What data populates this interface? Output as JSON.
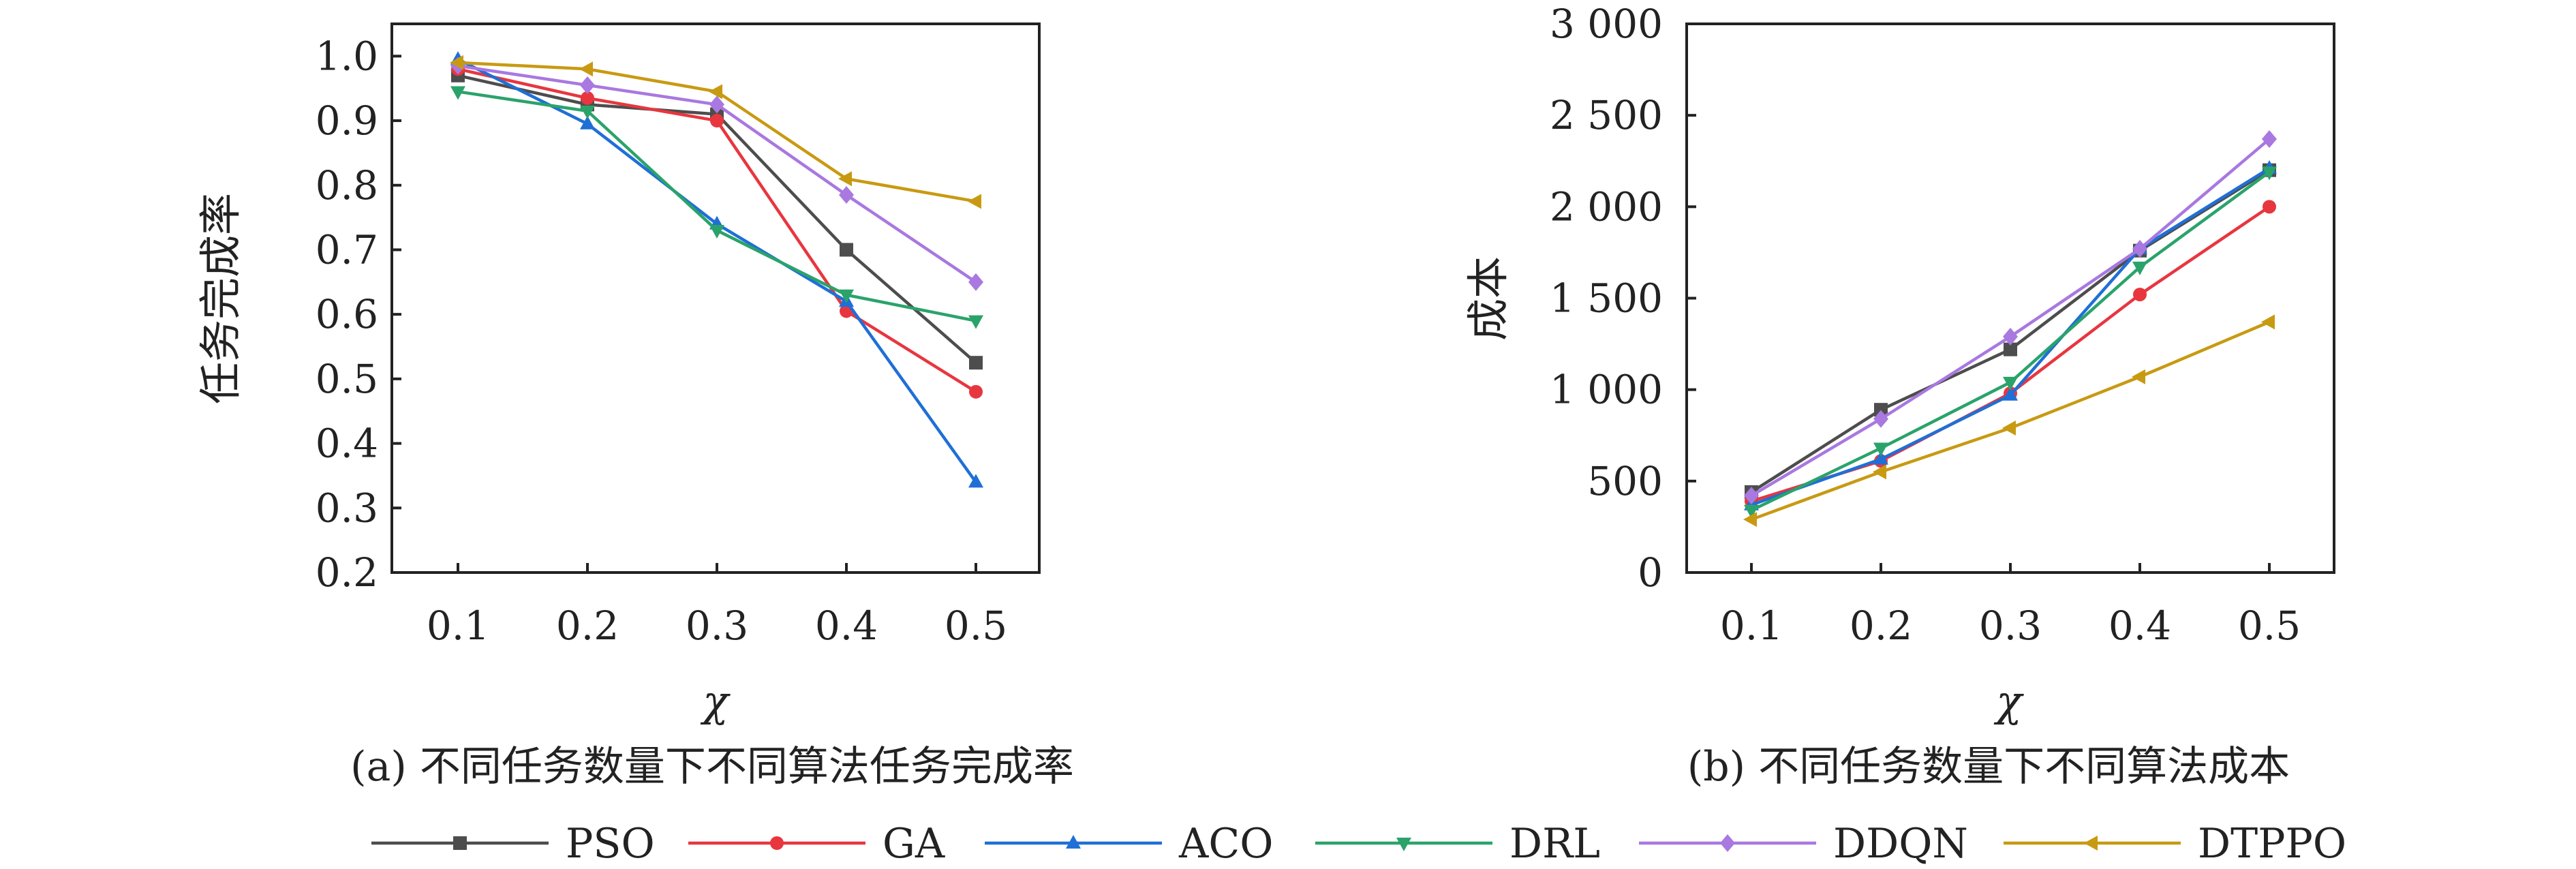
{
  "chart_data": [
    {
      "type": "line",
      "ylabel": "任务完成率",
      "xlabel": "χ",
      "caption": "(a) 不同任务数量下不同算法任务完成率",
      "x": [
        "0.1",
        "0.2",
        "0.3",
        "0.4",
        "0.5"
      ],
      "ylim": [
        0.2,
        1.05
      ],
      "yticks": [
        "0.2",
        "0.3",
        "0.4",
        "0.5",
        "0.6",
        "0.7",
        "0.8",
        "0.9",
        "1.0"
      ],
      "series": [
        {
          "name": "PSO",
          "values": [
            0.97,
            0.925,
            0.91,
            0.7,
            0.525
          ]
        },
        {
          "name": "GA",
          "values": [
            0.98,
            0.935,
            0.9,
            0.605,
            0.48
          ]
        },
        {
          "name": "ACO",
          "values": [
            0.995,
            0.895,
            0.74,
            0.62,
            0.34
          ]
        },
        {
          "name": "DRL",
          "values": [
            0.945,
            0.915,
            0.73,
            0.63,
            0.59
          ]
        },
        {
          "name": "DDQN",
          "values": [
            0.985,
            0.955,
            0.925,
            0.785,
            0.65
          ]
        },
        {
          "name": "DTPPO",
          "values": [
            0.99,
            0.98,
            0.945,
            0.81,
            0.775
          ]
        }
      ]
    },
    {
      "type": "line",
      "ylabel": "成本",
      "xlabel": "χ",
      "caption": "(b) 不同任务数量下不同算法成本",
      "x": [
        "0.1",
        "0.2",
        "0.3",
        "0.4",
        "0.5"
      ],
      "ylim": [
        0,
        3000
      ],
      "yticks": [
        "0",
        "500",
        "1 000",
        "1 500",
        "2 000",
        "2 500",
        "3 000"
      ],
      "series": [
        {
          "name": "PSO",
          "values": [
            440,
            890,
            1220,
            1760,
            2200
          ]
        },
        {
          "name": "GA",
          "values": [
            390,
            610,
            980,
            1520,
            2000
          ]
        },
        {
          "name": "ACO",
          "values": [
            370,
            620,
            970,
            1770,
            2210
          ]
        },
        {
          "name": "DRL",
          "values": [
            340,
            680,
            1040,
            1670,
            2190
          ]
        },
        {
          "name": "DDQN",
          "values": [
            420,
            840,
            1290,
            1770,
            2370
          ]
        },
        {
          "name": "DTPPO",
          "values": [
            290,
            550,
            790,
            1070,
            1370
          ]
        }
      ]
    }
  ],
  "legend": {
    "placement": "bottom",
    "items": [
      {
        "name": "PSO",
        "color": "#4d4d4d",
        "marker": "square"
      },
      {
        "name": "GA",
        "color": "#e8363f",
        "marker": "circle"
      },
      {
        "name": "ACO",
        "color": "#1f6fd6",
        "marker": "triangle-up"
      },
      {
        "name": "DRL",
        "color": "#2aa36b",
        "marker": "triangle-down"
      },
      {
        "name": "DDQN",
        "color": "#a978e0",
        "marker": "diamond"
      },
      {
        "name": "DTPPO",
        "color": "#c89a12",
        "marker": "triangle-left"
      }
    ]
  }
}
